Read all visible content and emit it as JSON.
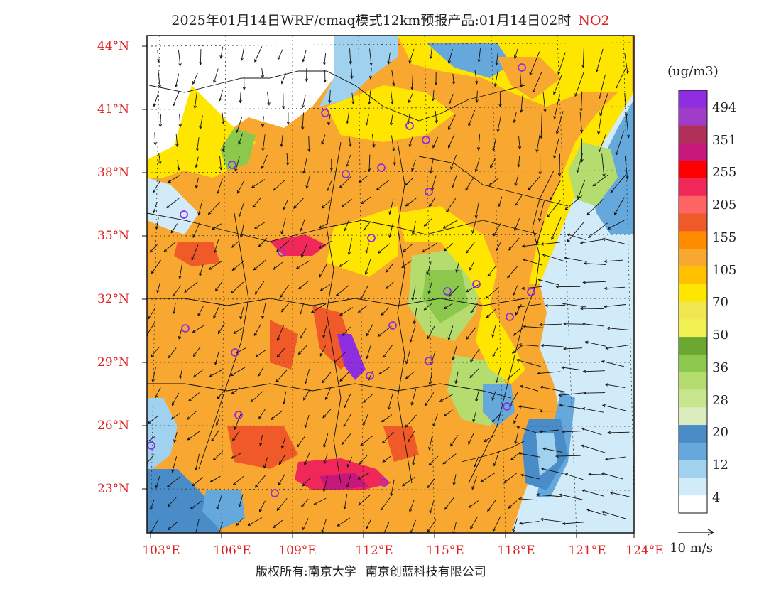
{
  "title": {
    "text": "2025年01月14日WRF/cmaq模式12km预报产品:01月14日02时",
    "pollutant": "NO2"
  },
  "lat_labels": [
    "44°N",
    "41°N",
    "38°N",
    "35°N",
    "32°N",
    "29°N",
    "26°N",
    "23°N"
  ],
  "lon_labels": [
    "103°E",
    "106°E",
    "109°E",
    "112°E",
    "115°E",
    "118°E",
    "121°E",
    "124°E"
  ],
  "colorbar": {
    "unit": "(ug/m3)",
    "labels": [
      "494",
      "351",
      "255",
      "205",
      "155",
      "105",
      "70",
      "50",
      "36",
      "28",
      "20",
      "12",
      "4"
    ],
    "colors": [
      "#8e2ee0",
      "#a13cc8",
      "#b0305a",
      "#c8177a",
      "#ff0000",
      "#f0285a",
      "#ff6464",
      "#f05a28",
      "#ff8c00",
      "#f8a830",
      "#ffc000",
      "#ffe600",
      "#f0e650",
      "#f0f050",
      "#6aa832",
      "#8cc84b",
      "#b4dc6e",
      "#c8e68c",
      "#dcebbe",
      "#4a8cc8",
      "#64a8dc",
      "#a0d2f0",
      "#d2ebf8",
      "#ffffff"
    ]
  },
  "wind_scale": {
    "label": "10 m/s"
  },
  "footer": {
    "left": "版权所有:南京大学",
    "right": "南京创蓝科技有限公司"
  }
}
